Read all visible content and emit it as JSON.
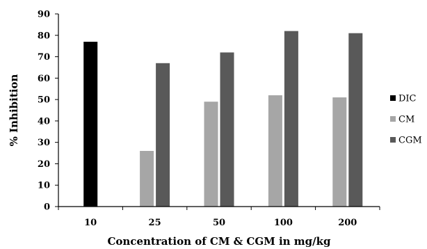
{
  "chart_data": {
    "type": "bar",
    "title": "",
    "xlabel": "Concentration of CM & CGM in mg/kg",
    "ylabel": "% Inhibition",
    "ylim": [
      0,
      90
    ],
    "yticks": [
      0,
      10,
      20,
      30,
      40,
      50,
      60,
      70,
      80,
      90
    ],
    "categories": [
      "10",
      "25",
      "50",
      "100",
      "200"
    ],
    "series": [
      {
        "name": "DIC",
        "color": "#000000",
        "values": [
          77,
          null,
          null,
          null,
          null
        ]
      },
      {
        "name": "CM",
        "color": "#a6a6a6",
        "values": [
          null,
          26,
          49,
          52,
          51
        ]
      },
      {
        "name": "CGM",
        "color": "#595959",
        "values": [
          null,
          67,
          72,
          82,
          81
        ]
      }
    ],
    "grid": false,
    "legend_position": "right"
  }
}
